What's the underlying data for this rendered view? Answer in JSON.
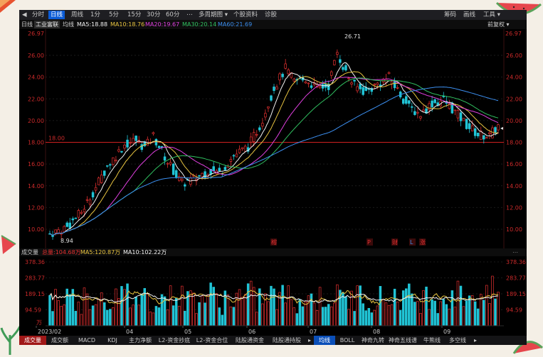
{
  "toolbar": {
    "items": [
      "分时",
      "日线",
      "周线",
      "1分",
      "5分",
      "15分",
      "30分",
      "60分",
      "多周期图",
      "个股资料",
      "诊股"
    ],
    "active_index": 1,
    "right_items": [
      "筹码",
      "画线",
      "工具"
    ]
  },
  "infobar": {
    "period": "日线",
    "stock_name": "工业富联",
    "avg_label": "均线",
    "ma": [
      {
        "label": "MA5:18.88",
        "color": "#f2f2f2"
      },
      {
        "label": "MA10:18.76",
        "color": "#e8c440"
      },
      {
        "label": "MA20:19.67",
        "color": "#e040e0"
      },
      {
        "label": "MA30:20.14",
        "color": "#30c060"
      },
      {
        "label": "MA60:21.69",
        "color": "#3c8ff0"
      }
    ],
    "fq_label": "前复权"
  },
  "price_axis": {
    "labels": [
      "26.00",
      "24.00",
      "22.00",
      "20.00",
      "18.00",
      "16.00",
      "14.00",
      "12.00",
      "10.00"
    ],
    "top_value": "26.97",
    "high_marker": "26.71",
    "low_marker": "8.94",
    "line_label": "18.00"
  },
  "event_markers": [
    "榕",
    "P",
    "财",
    "L",
    "涨"
  ],
  "volbar": {
    "title": "成交量",
    "total": "总量:104.68万",
    "ma5": "MA5:120.87万",
    "ma10": "MA10:102.22万"
  },
  "vol_axis": {
    "labels": [
      "378.36",
      "283.77",
      "189.15",
      "94.59"
    ],
    "unit": "万"
  },
  "date_axis": [
    "2023/02",
    "04",
    "05",
    "06",
    "07",
    "08",
    "09"
  ],
  "bottom_tabs": [
    "成交量",
    "成交额",
    "MACD",
    "KDJ",
    "主力净额",
    "L2-资金抄底",
    "L2-资金合位",
    "陆股通资金",
    "陆股通持股",
    "均线",
    "BOLL",
    "神奇九转",
    "神奇五线谱",
    "牛熊线",
    "多空线"
  ],
  "bottom_active_index": 9,
  "colors": {
    "up": "#e33030",
    "down": "#21c4d6",
    "accent": "#0a5bd6",
    "ma5": "#f2f2f2",
    "ma10": "#e8c440",
    "ma20": "#e040e0",
    "ma30": "#30c060",
    "ma60": "#3c8ff0"
  }
}
